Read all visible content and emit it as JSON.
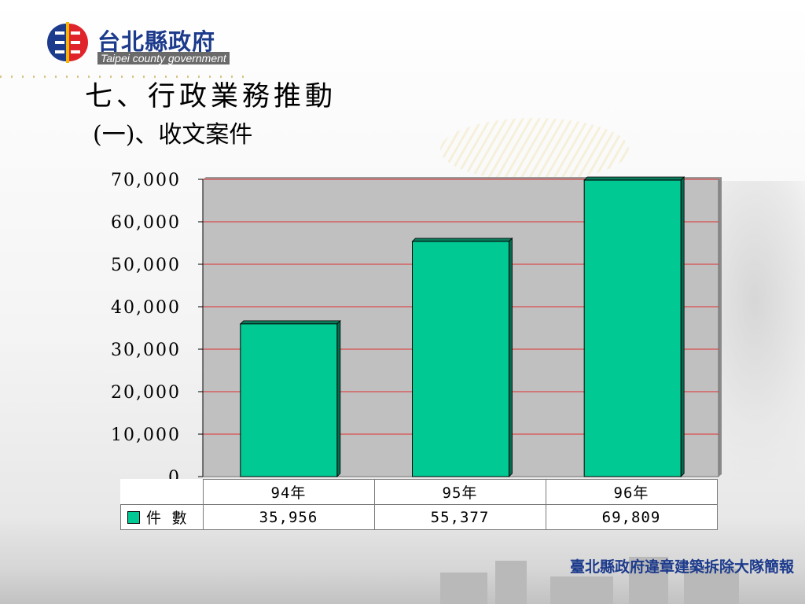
{
  "header": {
    "org_name": "台北縣政府",
    "org_name_en": "Taipei county government"
  },
  "heading": "七、行政業務推動",
  "subheading": "(一)、收文案件",
  "footer": "臺北縣政府違章建築拆除大隊簡報",
  "colors": {
    "bar": "#00C994",
    "plot_bg": "#C0C0C0",
    "gridline": "#E03030",
    "logo_blue": "#1D3B8C",
    "logo_red": "#E0242B",
    "logo_yellow": "#F2B705"
  },
  "chart_data": {
    "type": "bar",
    "categories": [
      "94年",
      "95年",
      "96年"
    ],
    "series": [
      {
        "name": "件數",
        "values": [
          35956,
          55377,
          69809
        ],
        "labels": [
          "35,956",
          "55,377",
          "69,809"
        ]
      }
    ],
    "ylim": [
      0,
      70000
    ],
    "yticks": [
      0,
      10000,
      20000,
      30000,
      40000,
      50000,
      60000,
      70000
    ],
    "ytick_labels": [
      "0",
      "10,000",
      "20,000",
      "30,000",
      "40,000",
      "50,000",
      "60,000",
      "70,000"
    ],
    "grid": true,
    "legend": "data-table",
    "title": "",
    "xlabel": "",
    "ylabel": ""
  },
  "table": {
    "series_label": "件 數"
  }
}
